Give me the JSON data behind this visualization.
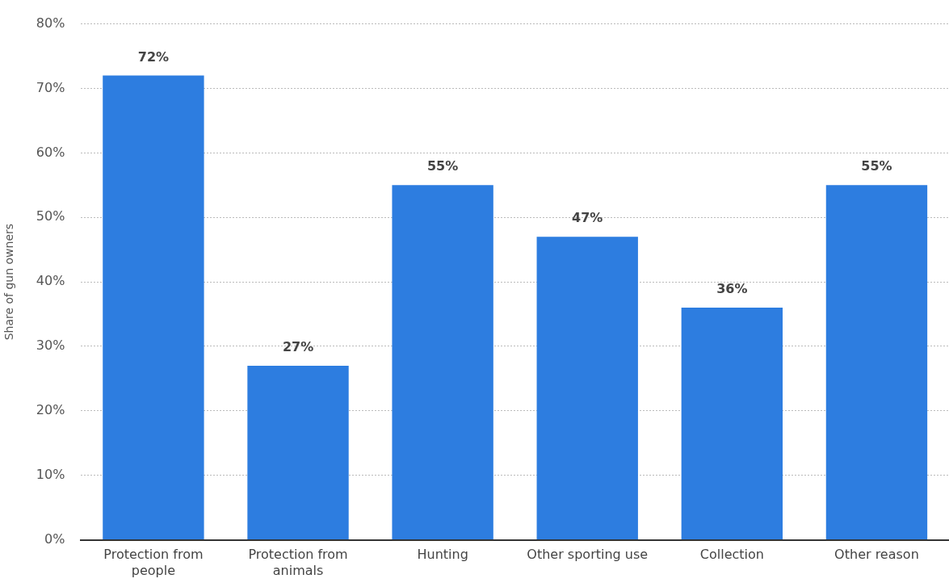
{
  "chart_data": {
    "type": "bar",
    "ylabel": "Share of gun owners",
    "categories": [
      "Protection from people",
      "Protection from animals",
      "Hunting",
      "Other sporting use",
      "Collection",
      "Other reason"
    ],
    "values": [
      72,
      27,
      55,
      47,
      36,
      55
    ],
    "value_labels": [
      "72%",
      "27%",
      "55%",
      "47%",
      "36%",
      "55%"
    ],
    "color": "#2d7de0",
    "ylim": [
      0,
      80
    ],
    "yticks": [
      {
        "value": 0,
        "label": "0%"
      },
      {
        "value": 10,
        "label": "10%"
      },
      {
        "value": 20,
        "label": "20%"
      },
      {
        "value": 30,
        "label": "30%"
      },
      {
        "value": 40,
        "label": "40%"
      },
      {
        "value": 50,
        "label": "50%"
      },
      {
        "value": 60,
        "label": "60%"
      },
      {
        "value": 70,
        "label": "70%"
      },
      {
        "value": 80,
        "label": "80%"
      }
    ],
    "grid": "y",
    "legend": false
  }
}
